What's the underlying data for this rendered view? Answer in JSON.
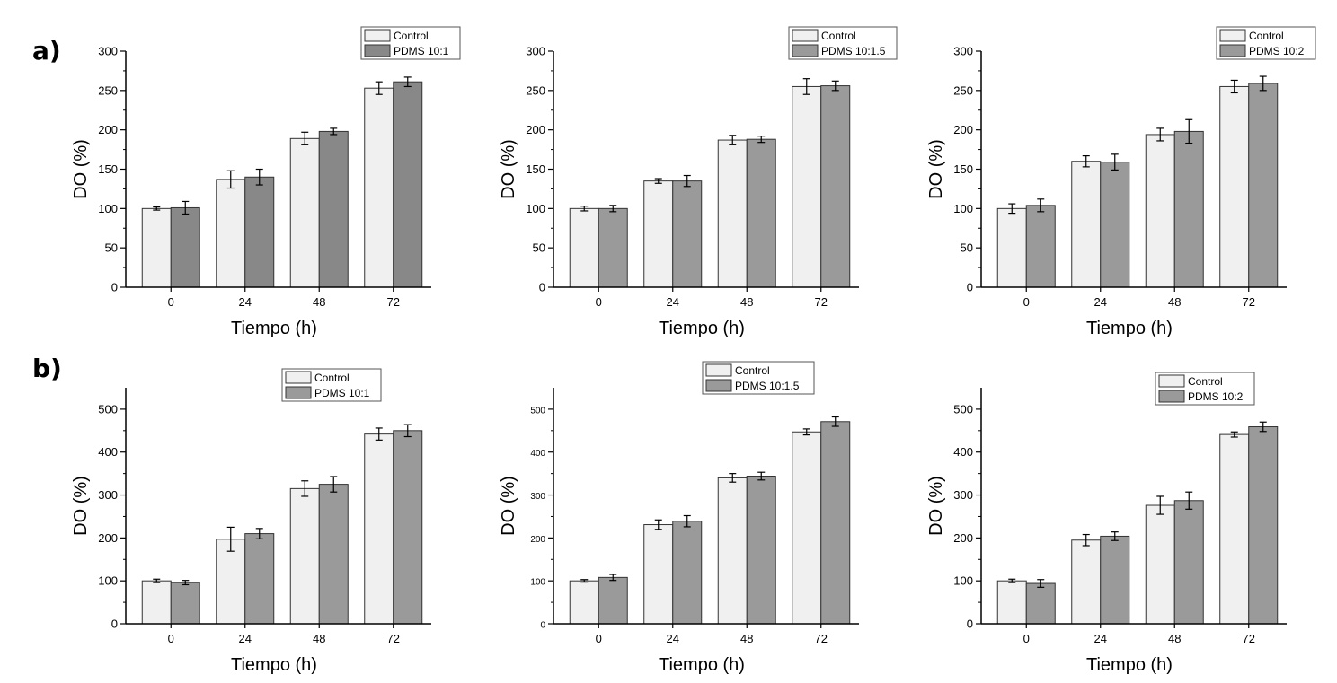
{
  "panels": [
    {
      "letter": "a)"
    },
    {
      "letter": "b)"
    }
  ],
  "colors": {
    "control": "#f0f0f0",
    "pdms_dark": "#888888",
    "pdms_mid": "#9a9a9a"
  },
  "chart_data": [
    {
      "type": "bar",
      "xlabel": "Tiempo (h)",
      "ylabel": "DO (%)",
      "categories": [
        "0",
        "24",
        "48",
        "72"
      ],
      "ylim": [
        0,
        300
      ],
      "yticks": [
        "0",
        "50",
        "100",
        "150",
        "200",
        "250",
        "300"
      ],
      "legend": "top-right",
      "series": [
        {
          "name": "Control",
          "values": [
            100,
            137,
            189,
            253
          ],
          "errors": [
            2,
            11,
            8,
            8
          ]
        },
        {
          "name": "PDMS 10:1",
          "values": [
            101,
            140,
            198,
            261
          ],
          "errors": [
            8,
            10,
            4,
            6
          ]
        }
      ]
    },
    {
      "type": "bar",
      "xlabel": "Tiempo (h)",
      "ylabel": "DO (%)",
      "categories": [
        "0",
        "24",
        "48",
        "72"
      ],
      "ylim": [
        0,
        300
      ],
      "yticks": [
        "0",
        "50",
        "100",
        "150",
        "200",
        "250",
        "300"
      ],
      "legend": "top-right",
      "series": [
        {
          "name": "Control",
          "values": [
            100,
            135,
            187,
            255
          ],
          "errors": [
            3,
            3,
            6,
            10
          ]
        },
        {
          "name": "PDMS 10:1.5",
          "values": [
            100,
            135,
            188,
            256
          ],
          "errors": [
            4,
            7,
            4,
            6
          ]
        }
      ]
    },
    {
      "type": "bar",
      "xlabel": "Tiempo (h)",
      "ylabel": "DO (%)",
      "categories": [
        "0",
        "24",
        "48",
        "72"
      ],
      "ylim": [
        0,
        300
      ],
      "yticks": [
        "0",
        "50",
        "100",
        "150",
        "200",
        "250",
        "300"
      ],
      "legend": "top-right",
      "series": [
        {
          "name": "Control",
          "values": [
            100,
            160,
            194,
            255
          ],
          "errors": [
            6,
            7,
            8,
            8
          ]
        },
        {
          "name": "PDMS 10:2",
          "values": [
            104,
            159,
            198,
            259
          ],
          "errors": [
            8,
            10,
            15,
            9
          ]
        }
      ]
    },
    {
      "type": "bar",
      "xlabel": "Tiempo (h)",
      "ylabel": "DO (%)",
      "categories": [
        "0",
        "24",
        "48",
        "72"
      ],
      "ylim": [
        0,
        550
      ],
      "yticks": [
        "0",
        "100",
        "200",
        "300",
        "400",
        "500"
      ],
      "legend": "top-right",
      "series": [
        {
          "name": "Control",
          "values": [
            100,
            197,
            315,
            442
          ],
          "errors": [
            4,
            28,
            18,
            14
          ]
        },
        {
          "name": "PDMS 10:1",
          "values": [
            96,
            210,
            325,
            450
          ],
          "errors": [
            5,
            12,
            18,
            14
          ]
        }
      ]
    },
    {
      "type": "bar",
      "xlabel": "Tiempo (h)",
      "ylabel": "DO (%)",
      "categories": [
        "0",
        "24",
        "48",
        "72"
      ],
      "ylim": [
        0,
        550
      ],
      "yticks": [
        "0",
        "100",
        "200",
        "300",
        "400",
        "500"
      ],
      "legend": "top-right",
      "series": [
        {
          "name": "Control",
          "values": [
            100,
            231,
            340,
            447
          ],
          "errors": [
            3,
            11,
            10,
            7
          ]
        },
        {
          "name": "PDMS 10:1.5",
          "values": [
            108,
            239,
            344,
            471
          ],
          "errors": [
            7,
            13,
            9,
            11
          ]
        }
      ]
    },
    {
      "type": "bar",
      "xlabel": "Tiempo (h)",
      "ylabel": "DO (%)",
      "categories": [
        "0",
        "24",
        "48",
        "72"
      ],
      "ylim": [
        0,
        550
      ],
      "yticks": [
        "0",
        "100",
        "200",
        "300",
        "400",
        "500"
      ],
      "legend": "top-right",
      "series": [
        {
          "name": "Control",
          "values": [
            100,
            195,
            276,
            441
          ],
          "errors": [
            4,
            13,
            21,
            6
          ]
        },
        {
          "name": "PDMS 10:2",
          "values": [
            94,
            204,
            287,
            459
          ],
          "errors": [
            9,
            10,
            20,
            11
          ]
        }
      ]
    }
  ]
}
